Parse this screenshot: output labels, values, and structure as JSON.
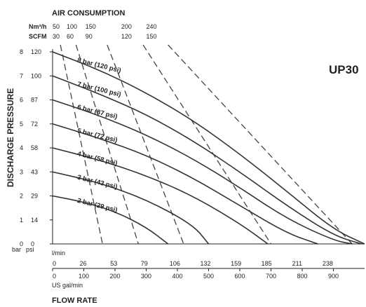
{
  "chart_data": {
    "type": "line",
    "model_label": "UP30",
    "top_title": "AIR CONSUMPTION",
    "ylabel": "DISCHARGE PRESSURE",
    "xlabel": "FLOW RATE",
    "y_unit_bar": "bar",
    "y_unit_psi": "psi",
    "x_unit_lmin": "l/min",
    "x_unit_usgal": "US gal/min",
    "nm3h_label": "Nm³/h",
    "scfm_label": "SCFM",
    "xlim_usgal": [
      0,
      1000
    ],
    "ylim_bar": [
      0,
      8
    ],
    "y_ticks_bar": [
      "0",
      "1",
      "2",
      "3",
      "4",
      "5",
      "6",
      "7",
      "8"
    ],
    "y_ticks_psi": [
      "0",
      "14",
      "29",
      "43",
      "58",
      "72",
      "87",
      "100",
      "120"
    ],
    "x_ticks_usgal": [
      "0",
      "100",
      "200",
      "300",
      "400",
      "500",
      "600",
      "700",
      "800",
      "900"
    ],
    "x_ticks_lmin": [
      "0",
      "26",
      "53",
      "79",
      "106",
      "132",
      "159",
      "185",
      "211",
      "238"
    ],
    "nm3h_ticks": [
      {
        "label": "50",
        "x": 0
      },
      {
        "label": "100",
        "x": 45
      },
      {
        "label": "150",
        "x": 105
      },
      {
        "label": "200",
        "x": 220
      },
      {
        "label": "240",
        "x": 300
      }
    ],
    "scfm_ticks": [
      {
        "label": "30",
        "x": 0
      },
      {
        "label": "60",
        "x": 45
      },
      {
        "label": "90",
        "x": 105
      },
      {
        "label": "120",
        "x": 220
      },
      {
        "label": "150",
        "x": 300
      }
    ],
    "series": [
      {
        "name": "8 bar (120 psi)",
        "x": [
          0,
          150,
          300,
          450,
          600,
          750,
          900,
          1000
        ],
        "y": [
          8.0,
          7.25,
          6.3,
          5.15,
          3.75,
          2.2,
          0.6,
          0
        ]
      },
      {
        "name": "7 bar (100 psi)",
        "x": [
          0,
          150,
          300,
          450,
          600,
          750,
          900,
          990
        ],
        "y": [
          7.0,
          6.25,
          5.4,
          4.3,
          3.0,
          1.6,
          0.35,
          0
        ]
      },
      {
        "name": "6 bar (87 psi)",
        "x": [
          0,
          150,
          300,
          450,
          600,
          750,
          900,
          960
        ],
        "y": [
          6.0,
          5.35,
          4.55,
          3.55,
          2.35,
          1.05,
          0.15,
          0
        ]
      },
      {
        "name": "5 bar (72 psi)",
        "x": [
          0,
          150,
          300,
          450,
          600,
          750,
          850
        ],
        "y": [
          5.0,
          4.4,
          3.7,
          2.75,
          1.6,
          0.45,
          0
        ]
      },
      {
        "name": "4 bar (58 psi)",
        "x": [
          0,
          150,
          300,
          450,
          600,
          690
        ],
        "y": [
          4.0,
          3.5,
          2.85,
          2.0,
          0.85,
          0
        ]
      },
      {
        "name": "3 bar (43 psi)",
        "x": [
          0,
          150,
          300,
          450,
          500
        ],
        "y": [
          3.0,
          2.55,
          1.85,
          0.8,
          0
        ]
      },
      {
        "name": "2 bar (29 psi)",
        "x": [
          0,
          100,
          200,
          300,
          370
        ],
        "y": [
          2.0,
          1.75,
          1.35,
          0.7,
          0
        ]
      }
    ],
    "air_lines": [
      {
        "x": [
          25,
          160
        ],
        "y": [
          8,
          0
        ]
      },
      {
        "x": [
          75,
          275
        ],
        "y": [
          8,
          0
        ]
      },
      {
        "x": [
          175,
          420
        ],
        "y": [
          8,
          0
        ]
      },
      {
        "x": [
          290,
          700
        ],
        "y": [
          8,
          0
        ]
      },
      {
        "x": [
          370,
          960
        ],
        "y": [
          8,
          0
        ]
      }
    ]
  }
}
